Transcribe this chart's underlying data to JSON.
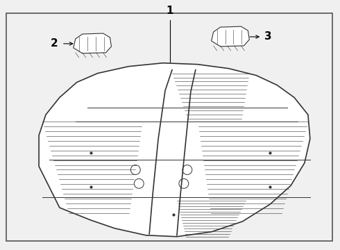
{
  "bg_color": "#f0f0f0",
  "border_color": "#555555",
  "line_color": "#333333",
  "label_1": "1",
  "label_2": "2",
  "label_3": "3"
}
